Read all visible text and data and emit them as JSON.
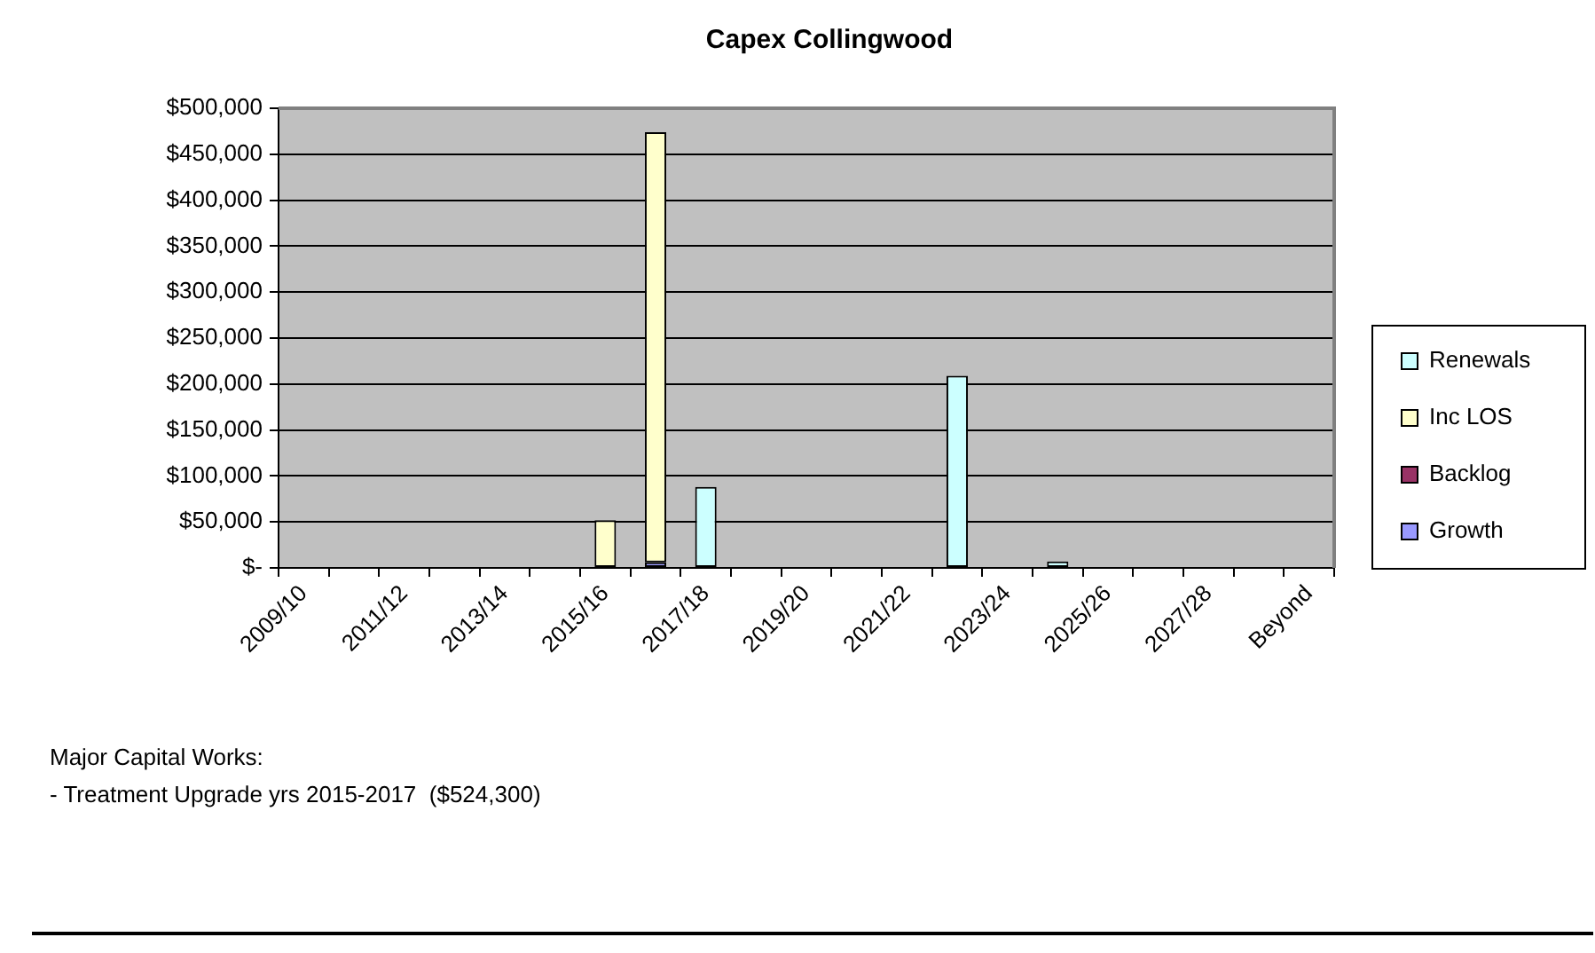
{
  "chart_data": {
    "type": "bar",
    "title": "Capex Collingwood",
    "categories": [
      "2009/10",
      null,
      "2011/12",
      null,
      "2013/14",
      null,
      "2015/16",
      null,
      "2017/18",
      null,
      "2019/20",
      null,
      "2021/22",
      null,
      "2023/24",
      null,
      "2025/26",
      null,
      "2027/28",
      null,
      "Beyond"
    ],
    "series": [
      {
        "name": "Growth",
        "color": "#9999ff",
        "values": [
          null,
          null,
          null,
          null,
          null,
          null,
          null,
          6000,
          null,
          null,
          null,
          null,
          null,
          null,
          null,
          null,
          null,
          null,
          null,
          null,
          null
        ]
      },
      {
        "name": "Backlog",
        "color": "#993366",
        "values": [
          null,
          null,
          null,
          null,
          null,
          null,
          null,
          null,
          null,
          null,
          null,
          null,
          null,
          null,
          null,
          null,
          null,
          null,
          null,
          null,
          null
        ]
      },
      {
        "name": "Inc LOS",
        "color": "#ffffcc",
        "values": [
          null,
          null,
          null,
          null,
          null,
          null,
          52000,
          468000,
          null,
          null,
          null,
          null,
          null,
          null,
          null,
          null,
          null,
          null,
          null,
          null,
          null
        ]
      },
      {
        "name": "Renewals",
        "color": "#ccffff",
        "values": [
          null,
          null,
          null,
          null,
          null,
          null,
          null,
          null,
          88000,
          null,
          null,
          null,
          null,
          209000,
          null,
          7000,
          null,
          null,
          null,
          null,
          null
        ]
      }
    ],
    "stacked": true,
    "ylim": [
      0,
      500000
    ],
    "yticks": [
      {
        "value": 0,
        "label": "$-"
      },
      {
        "value": 50000,
        "label": "$50,000"
      },
      {
        "value": 100000,
        "label": "$100,000"
      },
      {
        "value": 150000,
        "label": "$150,000"
      },
      {
        "value": 200000,
        "label": "$200,000"
      },
      {
        "value": 250000,
        "label": "$250,000"
      },
      {
        "value": 300000,
        "label": "$300,000"
      },
      {
        "value": 350000,
        "label": "$350,000"
      },
      {
        "value": 400000,
        "label": "$400,000"
      },
      {
        "value": 450000,
        "label": "$450,000"
      },
      {
        "value": 500000,
        "label": "$500,000"
      }
    ],
    "grid": "y",
    "legend": "right",
    "annotations": [
      "Major Capital Works:",
      "- Treatment Upgrade yrs 2015-2017  ($524,300)"
    ]
  }
}
